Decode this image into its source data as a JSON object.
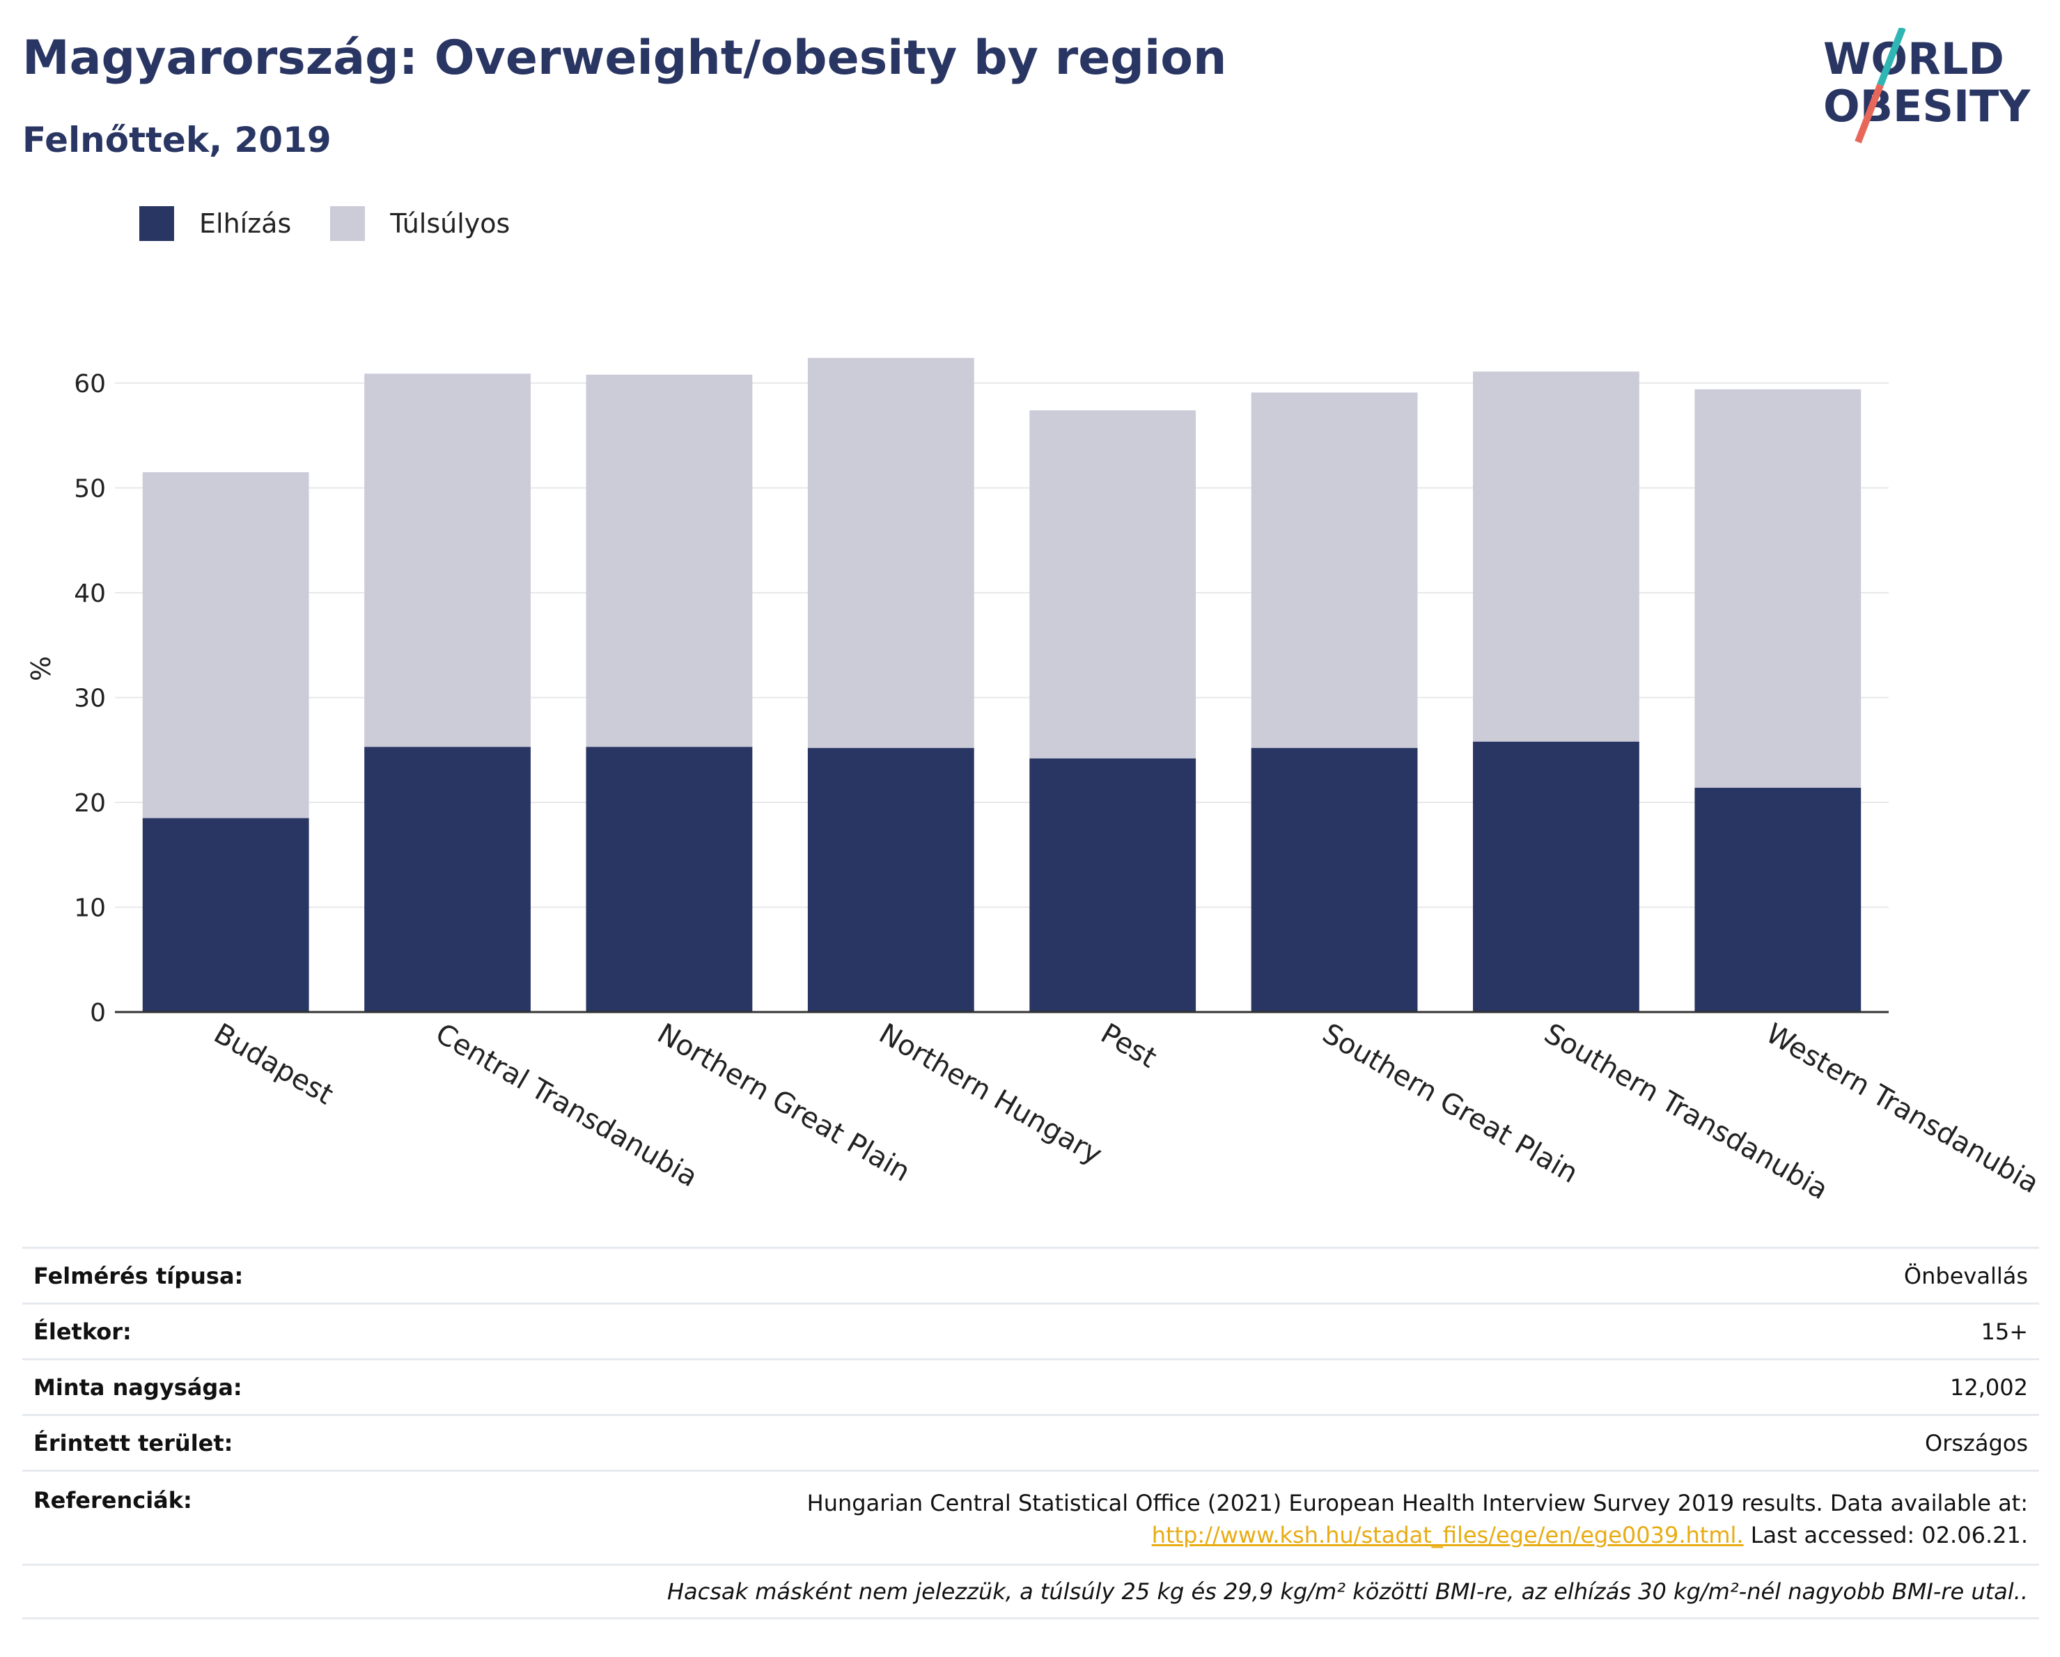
{
  "header": {
    "title": "Magyarország: Overweight/obesity by region",
    "subtitle": "Felnőttek, 2019"
  },
  "logo": {
    "line1": "WORLD",
    "line2": "OBESITY",
    "accent_teal": "#2fb5b3",
    "accent_coral": "#e7675a",
    "text_color": "#293562"
  },
  "legend": [
    {
      "name": "Elhízás",
      "color": "#293562"
    },
    {
      "name": "Túlsúlyos",
      "color": "#cbccd8"
    }
  ],
  "chart_data": {
    "type": "bar",
    "stacked": true,
    "categories": [
      "Budapest",
      "Central Transdanubia",
      "Northern Great Plain",
      "Northern Hungary",
      "Pest",
      "Southern Great Plain",
      "Southern Transdanubia",
      "Western Transdanubia"
    ],
    "series": [
      {
        "name": "Elhízás",
        "color": "#293562",
        "values": [
          18.5,
          25.3,
          25.3,
          25.2,
          24.2,
          25.2,
          25.8,
          21.4
        ]
      },
      {
        "name": "Túlsúlyos",
        "color": "#cbccd8",
        "values": [
          33.0,
          35.6,
          35.5,
          37.2,
          33.2,
          33.9,
          35.3,
          38.0
        ]
      }
    ],
    "ylabel": "%",
    "ylim": [
      0,
      65
    ],
    "yticks": [
      0,
      10,
      20,
      30,
      40,
      50,
      60
    ],
    "grid": true,
    "legend_position": "top-left"
  },
  "info": {
    "survey_type_label": "Felmérés típusa:",
    "survey_type_value": "Önbevallás",
    "age_label": "Életkor:",
    "age_value": "15+",
    "sample_label": "Minta nagysága:",
    "sample_value": "12,002",
    "area_label": "Érintett terület:",
    "area_value": "Országos",
    "ref_label": "Referenciák:",
    "ref_line1": "Hungarian Central Statistical Office (2021) European Health Interview Survey 2019 results. Data available at:",
    "ref_link": "http://www.ksh.hu/stadat_files/ege/en/ege0039.html.",
    "ref_accessed": " Last accessed: 02.06.21.",
    "note": "Hacsak másként nem jelezzük, a túlsúly 25 kg és 29,9 kg/m² közötti BMI-re, az elhízás 30 kg/m²-nél nagyobb BMI-re utal.."
  }
}
